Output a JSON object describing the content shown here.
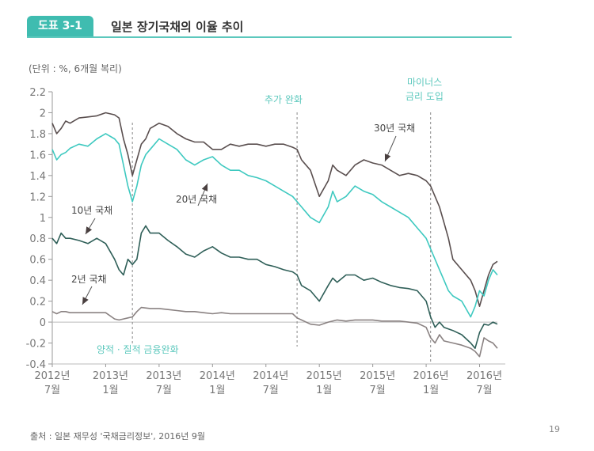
{
  "header": {
    "badge": "도표 3-1",
    "title": "일본 장기국채의 이율 추이"
  },
  "unit_note": "(단위 : %, 6개월 복리)",
  "source": "출처 : 일본 재무성 '국채금리정보', 2016년 9월",
  "page_number": "19",
  "colors": {
    "bond30": "#5a4f4f",
    "bond20": "#3ec9c0",
    "bond10": "#2f5f58",
    "bond2": "#8a8282",
    "accent": "#3fbcb0",
    "annotation": "#5cc8bd"
  },
  "chart_data": {
    "type": "line",
    "title": "일본 장기국채의 이율 추이",
    "ylabel": "(단위 : %, 6개월 복리)",
    "xlabel": "",
    "ylim": [
      -0.4,
      2.2
    ],
    "yticks": [
      "2.2",
      "2",
      "1.8",
      "1.6",
      "1.4",
      "1.2",
      "1",
      "0.8",
      "0.6",
      "0.4",
      "0.2",
      "0",
      "-0.2",
      "-0.4"
    ],
    "ytick_values": [
      2.2,
      2,
      1.8,
      1.6,
      1.4,
      1.2,
      1,
      0.8,
      0.6,
      0.4,
      0.2,
      0,
      -0.2,
      -0.4
    ],
    "xlim": [
      0,
      50
    ],
    "xticks": [
      {
        "line1": "2012년",
        "line2": "7월",
        "x": 0
      },
      {
        "line1": "2013년",
        "line2": "1월",
        "x": 6
      },
      {
        "line1": "2013년",
        "line2": "7월",
        "x": 12
      },
      {
        "line1": "2014년",
        "line2": "1월",
        "x": 18
      },
      {
        "line1": "2014년",
        "line2": "7월",
        "x": 24
      },
      {
        "line1": "2015년",
        "line2": "1월",
        "x": 30
      },
      {
        "line1": "2015년",
        "line2": "7월",
        "x": 36
      },
      {
        "line1": "2016년",
        "line2": "1월",
        "x": 42
      },
      {
        "line1": "2016년",
        "line2": "7월",
        "x": 48
      }
    ],
    "x_unit": "months since 2012-07",
    "grid": false,
    "events": [
      {
        "label": "양적 · 질적 금융완화",
        "x": 9
      },
      {
        "label": "추가 완화",
        "x": 27.5
      },
      {
        "label": "마이너스 금리 도입",
        "label_line1": "마이너스",
        "label_line2": "금리 도입",
        "x": 42.5
      }
    ],
    "series": [
      {
        "name": "30년 국채",
        "color_key": "bond30",
        "x": [
          0,
          0.5,
          1,
          1.5,
          2,
          3,
          4,
          5,
          6,
          7,
          7.5,
          8,
          8.5,
          9,
          9.5,
          10,
          10.5,
          11,
          12,
          13,
          14,
          15,
          16,
          17,
          18,
          19,
          20,
          21,
          22,
          23,
          24,
          25,
          26,
          27,
          27.5,
          28,
          29,
          30,
          31,
          31.5,
          32,
          33,
          34,
          35,
          36,
          37,
          38,
          39,
          40,
          41,
          42,
          42.5,
          43,
          43.5,
          44,
          44.5,
          45,
          46,
          47,
          47.5,
          48,
          48.5,
          49,
          49.5,
          50
        ],
        "values": [
          1.9,
          1.8,
          1.85,
          1.92,
          1.9,
          1.95,
          1.96,
          1.97,
          2.0,
          1.98,
          1.95,
          1.75,
          1.6,
          1.4,
          1.55,
          1.7,
          1.75,
          1.85,
          1.9,
          1.87,
          1.8,
          1.75,
          1.72,
          1.72,
          1.65,
          1.65,
          1.7,
          1.68,
          1.7,
          1.7,
          1.68,
          1.7,
          1.7,
          1.67,
          1.65,
          1.55,
          1.45,
          1.2,
          1.35,
          1.5,
          1.45,
          1.4,
          1.5,
          1.55,
          1.52,
          1.5,
          1.45,
          1.4,
          1.42,
          1.4,
          1.35,
          1.3,
          1.2,
          1.1,
          0.95,
          0.8,
          0.6,
          0.5,
          0.4,
          0.3,
          0.15,
          0.3,
          0.45,
          0.55,
          0.58
        ]
      },
      {
        "name": "20년 국채",
        "color_key": "bond20",
        "x": [
          0,
          0.5,
          1,
          1.5,
          2,
          3,
          4,
          5,
          6,
          7,
          7.5,
          8,
          8.5,
          9,
          9.5,
          10,
          10.5,
          11,
          12,
          13,
          14,
          15,
          16,
          17,
          18,
          19,
          20,
          21,
          22,
          23,
          24,
          25,
          26,
          27,
          27.5,
          28,
          29,
          30,
          31,
          31.5,
          32,
          33,
          34,
          35,
          36,
          37,
          38,
          39,
          40,
          41,
          42,
          42.5,
          43,
          43.5,
          44,
          44.5,
          45,
          46,
          47,
          47.5,
          48,
          48.5,
          49,
          49.5,
          50
        ],
        "values": [
          1.65,
          1.55,
          1.6,
          1.62,
          1.66,
          1.7,
          1.68,
          1.75,
          1.8,
          1.75,
          1.7,
          1.5,
          1.3,
          1.15,
          1.3,
          1.5,
          1.6,
          1.65,
          1.75,
          1.7,
          1.65,
          1.55,
          1.5,
          1.55,
          1.58,
          1.5,
          1.45,
          1.45,
          1.4,
          1.38,
          1.35,
          1.3,
          1.25,
          1.2,
          1.15,
          1.1,
          1.0,
          0.95,
          1.1,
          1.25,
          1.15,
          1.2,
          1.3,
          1.25,
          1.22,
          1.15,
          1.1,
          1.05,
          1.0,
          0.9,
          0.8,
          0.7,
          0.6,
          0.5,
          0.4,
          0.3,
          0.25,
          0.2,
          0.05,
          0.15,
          0.3,
          0.25,
          0.4,
          0.5,
          0.45
        ]
      },
      {
        "name": "10년 국채",
        "color_key": "bond10",
        "x": [
          0,
          0.5,
          1,
          1.5,
          2,
          3,
          4,
          5,
          6,
          7,
          7.5,
          8,
          8.5,
          9,
          9.5,
          10,
          10.5,
          11,
          12,
          13,
          14,
          15,
          16,
          17,
          18,
          19,
          20,
          21,
          22,
          23,
          24,
          25,
          26,
          27,
          27.5,
          28,
          29,
          30,
          31,
          31.5,
          32,
          33,
          34,
          35,
          36,
          37,
          38,
          39,
          40,
          41,
          42,
          42.5,
          43,
          43.5,
          44,
          45,
          46,
          47,
          47.5,
          48,
          48.5,
          49,
          49.5,
          50
        ],
        "values": [
          0.8,
          0.75,
          0.85,
          0.8,
          0.8,
          0.78,
          0.75,
          0.8,
          0.75,
          0.6,
          0.5,
          0.45,
          0.6,
          0.55,
          0.6,
          0.85,
          0.92,
          0.85,
          0.85,
          0.78,
          0.72,
          0.65,
          0.62,
          0.68,
          0.72,
          0.66,
          0.62,
          0.62,
          0.6,
          0.6,
          0.55,
          0.53,
          0.5,
          0.48,
          0.45,
          0.35,
          0.3,
          0.2,
          0.35,
          0.42,
          0.38,
          0.45,
          0.45,
          0.4,
          0.42,
          0.38,
          0.35,
          0.33,
          0.32,
          0.3,
          0.2,
          0.05,
          -0.05,
          0.0,
          -0.05,
          -0.08,
          -0.12,
          -0.2,
          -0.25,
          -0.1,
          -0.02,
          -0.03,
          0.0,
          -0.02
        ]
      },
      {
        "name": "2년 국채",
        "color_key": "bond2",
        "x": [
          0,
          0.5,
          1,
          1.5,
          2,
          3,
          4,
          5,
          6,
          7,
          7.5,
          8,
          8.5,
          9,
          9.5,
          10,
          11,
          12,
          13,
          14,
          15,
          16,
          17,
          18,
          19,
          20,
          21,
          22,
          23,
          24,
          25,
          26,
          27,
          27.5,
          28,
          29,
          30,
          31,
          32,
          33,
          34,
          35,
          36,
          37,
          38,
          39,
          40,
          41,
          42,
          42.5,
          43,
          43.5,
          44,
          45,
          46,
          47,
          47.5,
          48,
          48.5,
          49,
          49.5,
          50
        ],
        "values": [
          0.1,
          0.08,
          0.1,
          0.1,
          0.09,
          0.09,
          0.09,
          0.09,
          0.09,
          0.03,
          0.02,
          0.03,
          0.04,
          0.05,
          0.1,
          0.14,
          0.13,
          0.13,
          0.12,
          0.11,
          0.1,
          0.1,
          0.09,
          0.08,
          0.09,
          0.08,
          0.08,
          0.08,
          0.08,
          0.08,
          0.08,
          0.08,
          0.08,
          0.04,
          0.02,
          -0.02,
          -0.03,
          0.0,
          0.02,
          0.01,
          0.02,
          0.02,
          0.02,
          0.01,
          0.01,
          0.01,
          0.0,
          -0.01,
          -0.05,
          -0.15,
          -0.2,
          -0.12,
          -0.18,
          -0.2,
          -0.22,
          -0.25,
          -0.28,
          -0.33,
          -0.15,
          -0.18,
          -0.2,
          -0.25
        ]
      }
    ],
    "series_labels": [
      {
        "text": "30년 국채",
        "series": "30년 국채"
      },
      {
        "text": "20년 국채",
        "series": "20년 국채"
      },
      {
        "text": "10년 국채",
        "series": "10년 국채"
      },
      {
        "text": "2년 국채",
        "series": "2년 국채"
      }
    ]
  }
}
